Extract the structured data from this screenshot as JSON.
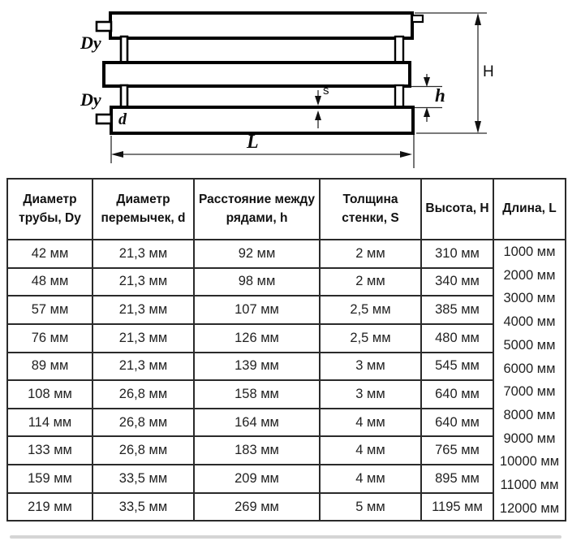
{
  "diagram": {
    "labels": {
      "dy_top": "Dy",
      "dy_bottom": "Dy",
      "d": "d",
      "s": "s",
      "h": "h",
      "H": "H",
      "L": "L"
    }
  },
  "table": {
    "headers": [
      "Диаметр трубы, Dy",
      "Диаметр перемычек, d",
      "Расстояние между рядами, h",
      "Толщина стенки, S",
      "Высота, H",
      "Длина, L"
    ],
    "rows": [
      [
        "42 мм",
        "21,3 мм",
        "92 мм",
        "2 мм",
        "310 мм"
      ],
      [
        "48 мм",
        "21,3 мм",
        "98 мм",
        "2 мм",
        "340 мм"
      ],
      [
        "57 мм",
        "21,3 мм",
        "107 мм",
        "2,5 мм",
        "385 мм"
      ],
      [
        "76 мм",
        "21,3 мм",
        "126 мм",
        "2,5 мм",
        "480 мм"
      ],
      [
        "89 мм",
        "21,3 мм",
        "139 мм",
        "3 мм",
        "545 мм"
      ],
      [
        "108 мм",
        "26,8 мм",
        "158 мм",
        "3 мм",
        "640 мм"
      ],
      [
        "114 мм",
        "26,8 мм",
        "164 мм",
        "4 мм",
        "640 мм"
      ],
      [
        "133 мм",
        "26,8 мм",
        "183 мм",
        "4 мм",
        "765 мм"
      ],
      [
        "159 мм",
        "33,5 мм",
        "209 мм",
        "4 мм",
        "895 мм"
      ],
      [
        "219 мм",
        "33,5 мм",
        "269 мм",
        "5 мм",
        "1195 мм"
      ]
    ],
    "length_values": [
      "1000 мм",
      "2000 мм",
      "3000 мм",
      "4000 мм",
      "5000 мм",
      "6000 мм",
      "7000 мм",
      "8000 мм",
      "9000 мм",
      "10000 мм",
      "11000 мм",
      "12000 мм"
    ]
  },
  "colors": {
    "line": "#000000",
    "text": "#1c1c1c",
    "background": "#ffffff"
  }
}
